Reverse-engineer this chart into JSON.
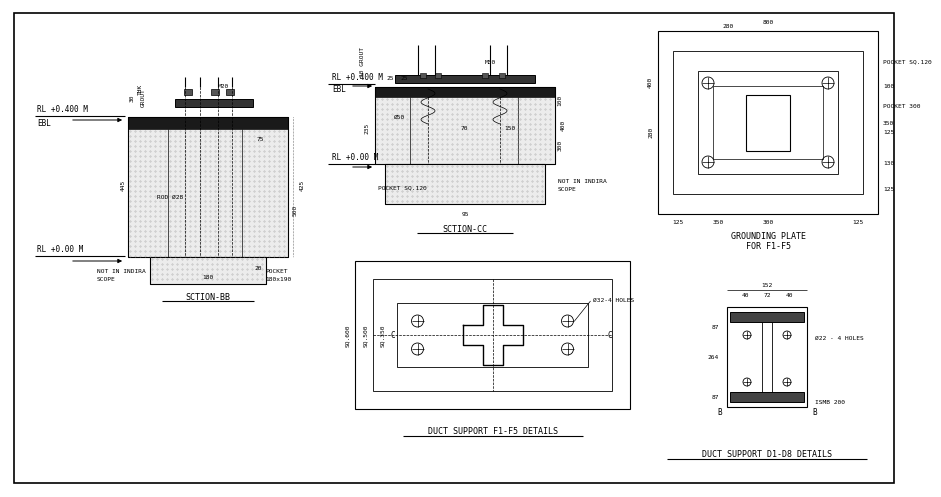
{
  "bg_color": "#ffffff",
  "lc": "#000000",
  "title_bb": "SCTION-BB",
  "title_cc": "SCTION-CC",
  "title_f1f5": "DUCT SUPPORT F1-F5 DETAILS",
  "title_grounding_1": "GROUNDING PLATE",
  "title_grounding_2": "FOR F1-F5",
  "title_d1d8": "DUCT SUPPORT D1-D8 DETAILS",
  "text_rl400": "RL +0.400 M",
  "text_ebl": "EBL",
  "text_rl000": "RL +0.00 M",
  "text_rod": "ROD Ø28",
  "text_m20": "M20",
  "text_m30": "M30",
  "text_holes_f1f5": "Ø32-4 HOLES",
  "text_holes_d1d8": "Ø22 - 4 HOLES",
  "text_ismb": "ISMB 200",
  "text_pocket_sq120": "POCKET SQ.120",
  "text_pocket_300": "POCKET 300",
  "fs": 4.5,
  "fm": 5.5,
  "ft": 6.0
}
